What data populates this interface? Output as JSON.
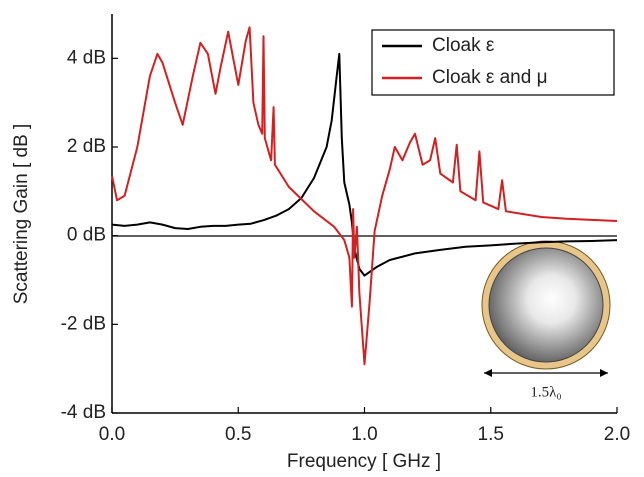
{
  "chart_data": {
    "type": "line",
    "xlabel": "Frequency [ GHz ]",
    "ylabel": "Scattering Gain [ dB ]",
    "xlim": [
      0,
      2
    ],
    "ylim": [
      -4,
      5
    ],
    "xticks": [
      {
        "value": 0,
        "label": "0.0"
      },
      {
        "value": 0.5,
        "label": "0.5"
      },
      {
        "value": 1,
        "label": "1.0"
      },
      {
        "value": 1.5,
        "label": "1.5"
      },
      {
        "value": 2,
        "label": "2.0"
      }
    ],
    "yticks": [
      {
        "value": -4,
        "label": "-4 dB"
      },
      {
        "value": -2,
        "label": "-2 dB"
      },
      {
        "value": 0,
        "label": "0 dB"
      },
      {
        "value": 2,
        "label": "2 dB"
      },
      {
        "value": 4,
        "label": "4 dB"
      }
    ],
    "legend": "upper right",
    "annotations": [
      "1.5λ₀"
    ],
    "series": [
      {
        "name": "Cloak ε",
        "color": "#000000",
        "x": [
          0,
          0.05,
          0.1,
          0.15,
          0.2,
          0.25,
          0.3,
          0.35,
          0.4,
          0.45,
          0.5,
          0.55,
          0.6,
          0.65,
          0.7,
          0.75,
          0.8,
          0.85,
          0.87,
          0.89,
          0.9,
          0.91,
          0.92,
          0.94,
          0.95,
          0.96,
          0.98,
          1.0,
          1.05,
          1.1,
          1.2,
          1.3,
          1.4,
          1.5,
          1.6,
          1.7,
          1.8,
          1.9,
          2.0
        ],
        "values": [
          0.25,
          0.22,
          0.25,
          0.3,
          0.25,
          0.17,
          0.15,
          0.2,
          0.22,
          0.22,
          0.25,
          0.27,
          0.35,
          0.45,
          0.6,
          0.85,
          1.3,
          2.0,
          2.6,
          3.6,
          4.1,
          2.2,
          1.2,
          0.7,
          0.3,
          -0.3,
          -0.75,
          -0.9,
          -0.7,
          -0.55,
          -0.4,
          -0.32,
          -0.25,
          -0.22,
          -0.18,
          -0.15,
          -0.13,
          -0.12,
          -0.1
        ]
      },
      {
        "name": "Cloak ε and μ",
        "color": "#d42020",
        "x": [
          0,
          0.02,
          0.05,
          0.1,
          0.15,
          0.18,
          0.2,
          0.25,
          0.28,
          0.32,
          0.35,
          0.38,
          0.41,
          0.43,
          0.46,
          0.48,
          0.5,
          0.53,
          0.545,
          0.56,
          0.58,
          0.595,
          0.6,
          0.605,
          0.63,
          0.64,
          0.645,
          0.7,
          0.8,
          0.88,
          0.92,
          0.94,
          0.95,
          0.955,
          0.96,
          0.97,
          0.98,
          1.0,
          1.02,
          1.04,
          1.07,
          1.1,
          1.12,
          1.15,
          1.18,
          1.2,
          1.23,
          1.26,
          1.28,
          1.3,
          1.35,
          1.365,
          1.38,
          1.44,
          1.455,
          1.47,
          1.53,
          1.545,
          1.56,
          1.7,
          1.8,
          2.0
        ],
        "values": [
          1.35,
          0.8,
          0.9,
          2.0,
          3.6,
          4.1,
          3.9,
          3.0,
          2.5,
          3.6,
          4.35,
          4.1,
          3.2,
          3.8,
          4.6,
          4.0,
          3.4,
          4.4,
          4.7,
          3.0,
          2.5,
          2.3,
          4.5,
          2.2,
          1.7,
          2.9,
          1.6,
          1.1,
          0.55,
          0.2,
          -0.1,
          -0.5,
          -1.6,
          0.6,
          -0.5,
          0.2,
          -1.3,
          -2.9,
          -1.5,
          0.1,
          0.9,
          1.5,
          2.0,
          1.7,
          2.1,
          2.3,
          1.6,
          1.7,
          2.2,
          1.4,
          1.2,
          2.05,
          1.0,
          0.8,
          1.9,
          0.75,
          0.6,
          1.25,
          0.55,
          0.42,
          0.38,
          0.33
        ]
      }
    ]
  }
}
